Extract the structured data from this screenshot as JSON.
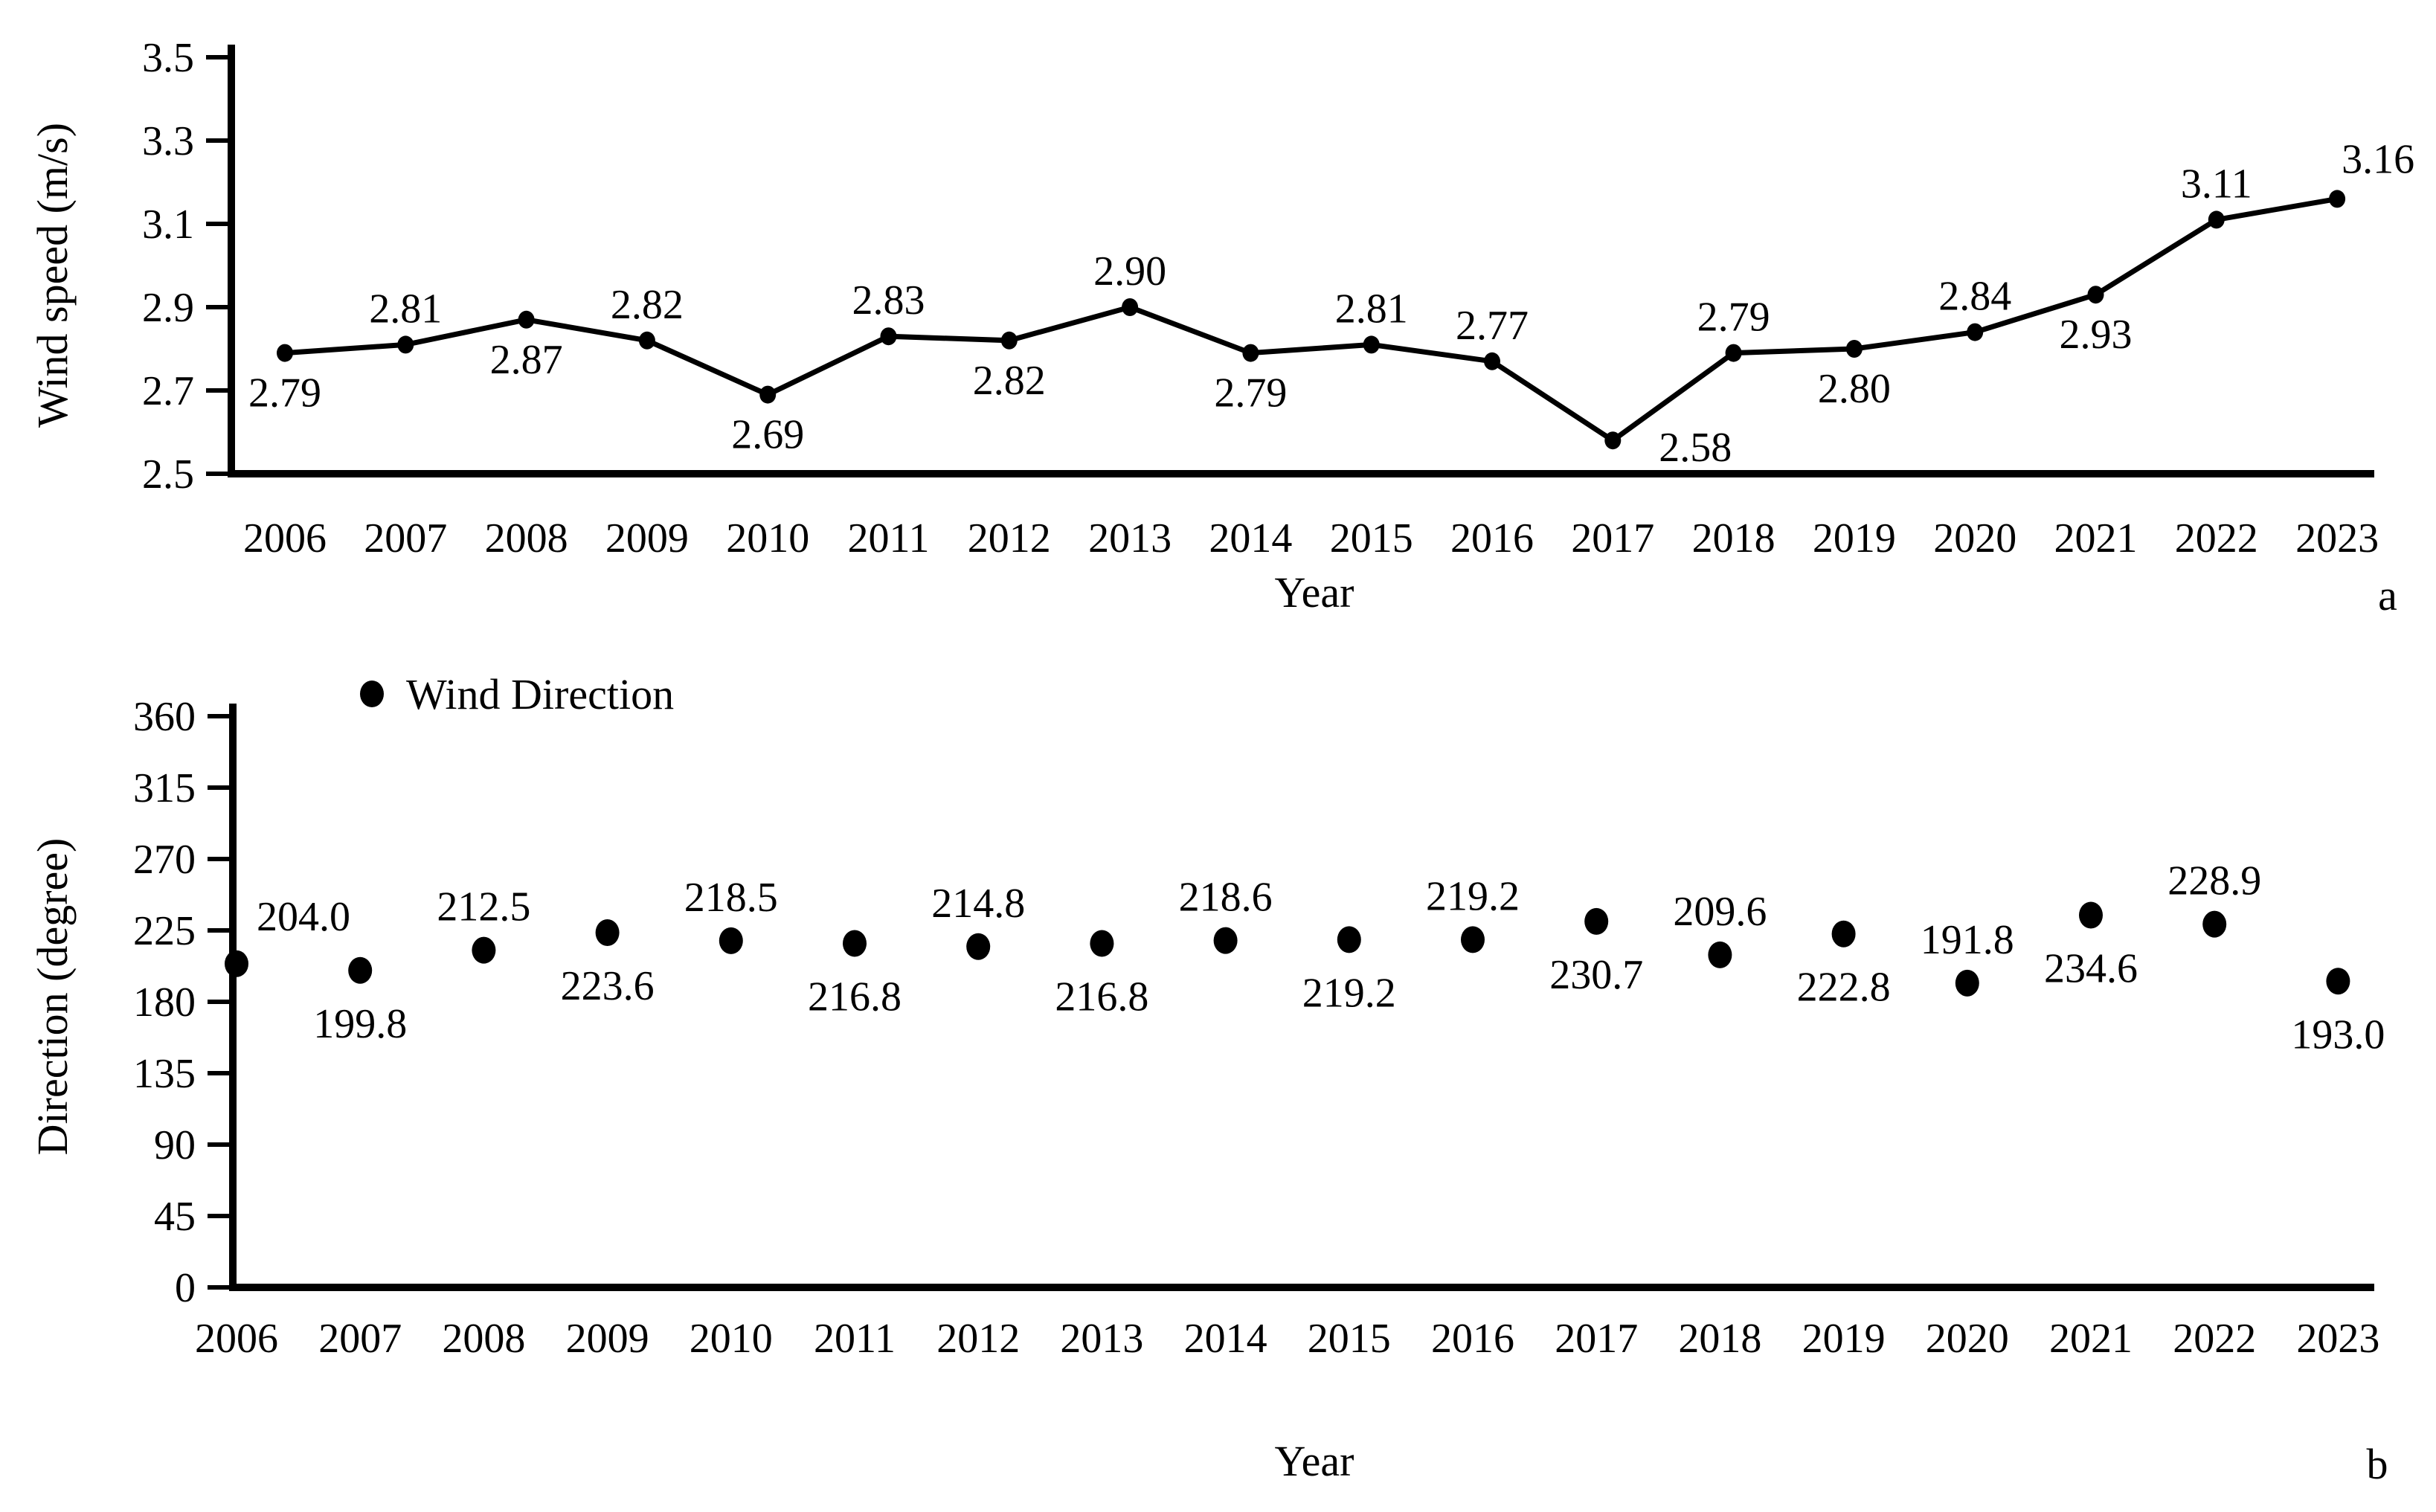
{
  "figure": {
    "background_color": "#ffffff",
    "ink_color": "#000000"
  },
  "chart_data": [
    {
      "type": "line",
      "panel_label": "a",
      "title": "",
      "xlabel": "Year",
      "ylabel": "Wind speed (m/s)",
      "categories": [
        "2006",
        "2007",
        "2008",
        "2009",
        "2010",
        "2011",
        "2012",
        "2013",
        "2014",
        "2015",
        "2016",
        "2017",
        "2018",
        "2019",
        "2020",
        "2021",
        "2022",
        "2023"
      ],
      "series": [
        {
          "name": "Wind speed",
          "values": [
            2.79,
            2.81,
            2.87,
            2.82,
            2.69,
            2.83,
            2.82,
            2.9,
            2.79,
            2.81,
            2.77,
            2.58,
            2.79,
            2.8,
            2.84,
            2.93,
            3.11,
            3.16
          ]
        }
      ],
      "ylim": [
        2.5,
        3.5
      ],
      "yticks": [
        2.5,
        2.7,
        2.9,
        3.1,
        3.3,
        3.5
      ],
      "ytick_labels": [
        "2.5",
        "2.7",
        "2.9",
        "3.1",
        "3.3",
        "3.5"
      ],
      "point_labels": [
        "2.79",
        "2.81",
        "2.87",
        "2.82",
        "2.69",
        "2.83",
        "2.82",
        "2.90",
        "2.79",
        "2.81",
        "2.77",
        "2.58",
        "2.79",
        "2.80",
        "2.84",
        "2.93",
        "3.11",
        "3.16"
      ],
      "point_label_positions": [
        "below",
        "above",
        "below",
        "above",
        "below",
        "above",
        "below",
        "above",
        "below",
        "above",
        "above",
        "right",
        "above",
        "below",
        "above",
        "below",
        "above",
        "above-right"
      ],
      "grid": false,
      "legend": null,
      "marker": "filled-circle"
    },
    {
      "type": "scatter",
      "panel_label": "b",
      "title": "",
      "xlabel": "Year",
      "ylabel": "Direction (degree)",
      "categories": [
        "2006",
        "2007",
        "2008",
        "2009",
        "2010",
        "2011",
        "2012",
        "2013",
        "2014",
        "2015",
        "2016",
        "2017",
        "2018",
        "2019",
        "2020",
        "2021",
        "2022",
        "2023"
      ],
      "series": [
        {
          "name": "Wind Direction",
          "values": [
            204.0,
            199.8,
            212.5,
            223.6,
            218.5,
            216.8,
            214.8,
            216.8,
            218.6,
            219.2,
            219.2,
            230.7,
            209.6,
            222.8,
            191.8,
            234.6,
            228.9,
            193.0
          ]
        }
      ],
      "ylim": [
        0,
        360
      ],
      "yticks": [
        0,
        45,
        90,
        135,
        180,
        225,
        270,
        315,
        360
      ],
      "ytick_labels": [
        "0",
        "45",
        "90",
        "135",
        "180",
        "225",
        "270",
        "315",
        "360"
      ],
      "point_labels": [
        "204.0",
        "199.8",
        "212.5",
        "223.6",
        "218.5",
        "216.8",
        "214.8",
        "216.8",
        "218.6",
        "219.2",
        "219.2",
        "230.7",
        "209.6",
        "222.8",
        "191.8",
        "234.6",
        "228.9",
        "193.0"
      ],
      "point_label_positions": [
        "above-right",
        "below",
        "above",
        "below",
        "above",
        "below",
        "above",
        "below",
        "above",
        "below",
        "above",
        "below",
        "above",
        "below",
        "above",
        "below",
        "above",
        "below"
      ],
      "grid": false,
      "legend": {
        "label": "Wind Direction",
        "position": "top-left-above-plot"
      },
      "marker": "filled-circle"
    }
  ]
}
